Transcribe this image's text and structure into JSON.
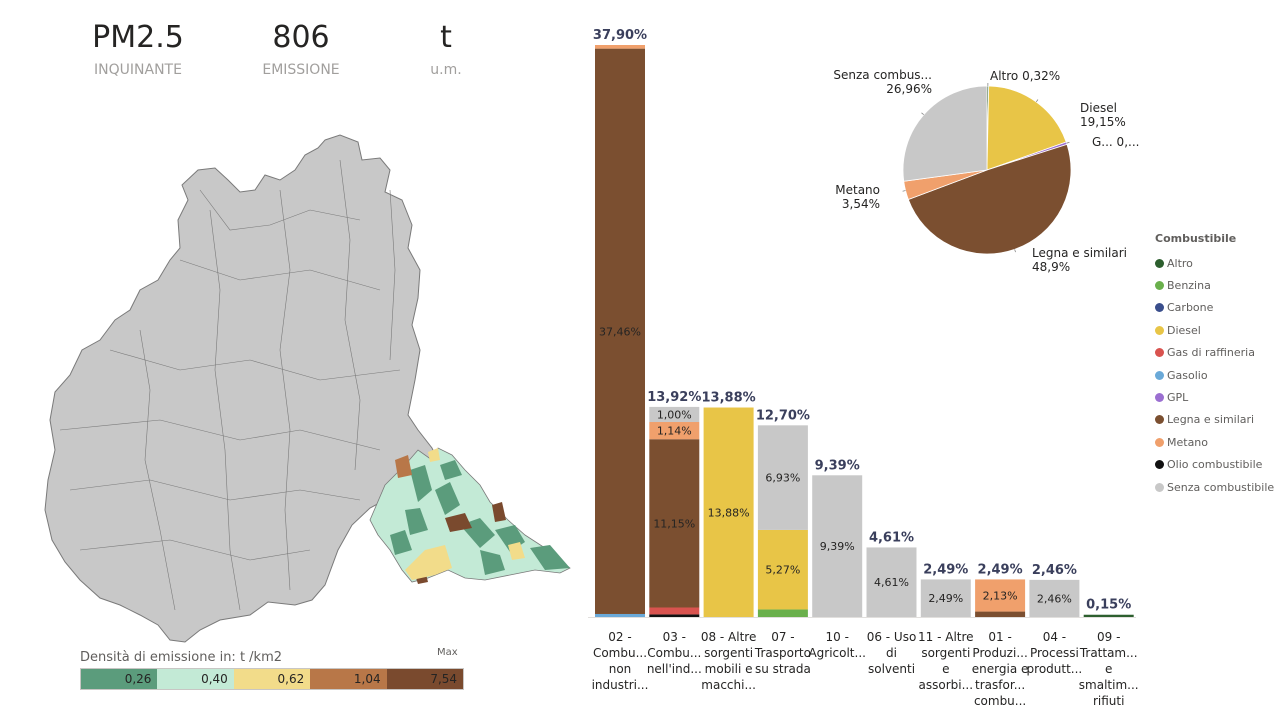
{
  "kpis": [
    {
      "value": "PM2.5",
      "label": "INQUINANTE"
    },
    {
      "value": "806",
      "label": "EMISSIONE"
    },
    {
      "value": "t",
      "label": "u.m."
    }
  ],
  "map_legend": {
    "title": "Densità di emissione in:  t /km2",
    "max_label": "Max",
    "classes": [
      {
        "label": "0,26",
        "color": "#5b9c7c"
      },
      {
        "label": "0,40",
        "color": "#c3ead6"
      },
      {
        "label": "0,62",
        "color": "#f2dc8a"
      },
      {
        "label": "1,04",
        "color": "#b87748"
      },
      {
        "label": "7,54",
        "color": "#7a4a2e"
      }
    ]
  },
  "fuel_legend": {
    "title": "Combustibile",
    "items": [
      {
        "name": "Altro",
        "color": "#2d5f2e"
      },
      {
        "name": "Benzina",
        "color": "#6ab04c"
      },
      {
        "name": "Carbone",
        "color": "#3a4e8c"
      },
      {
        "name": "Diesel",
        "color": "#e8c547"
      },
      {
        "name": "Gas di raffineria",
        "color": "#d9534f"
      },
      {
        "name": "Gasolio",
        "color": "#6aa9d8"
      },
      {
        "name": "GPL",
        "color": "#9b6fd1"
      },
      {
        "name": "Legna e similari",
        "color": "#7b4f30"
      },
      {
        "name": "Metano",
        "color": "#f0a06c"
      },
      {
        "name": "Olio combustibile",
        "color": "#111111"
      },
      {
        "name": "Senza combustibile",
        "color": "#c8c8c8"
      }
    ]
  },
  "chart_data": [
    {
      "type": "bar",
      "stacked": true,
      "categories": [
        [
          "02 -",
          "Combu...",
          "non",
          "industri..."
        ],
        [
          "03 -",
          "Combu...",
          "nell'ind..."
        ],
        [
          "08 - Altre",
          "sorgenti",
          "mobili e",
          "macchi..."
        ],
        [
          "07 -",
          "Trasporto",
          "su strada"
        ],
        [
          "10 -",
          "Agricolt..."
        ],
        [
          "06 - Uso",
          "di",
          "solventi"
        ],
        [
          "11 - Altre",
          "sorgenti",
          "e",
          "assorbi..."
        ],
        [
          "01 -",
          "Produzi...",
          "energia e",
          "trasfor...",
          "combu..."
        ],
        [
          "04 -",
          "Processi",
          "produtt..."
        ],
        [
          "09 -",
          "Trattam...",
          "e",
          "smaltim...",
          "rifiuti"
        ]
      ],
      "totals": [
        "37,90%",
        "13,92%",
        "13,88%",
        "12,70%",
        "9,39%",
        "4,61%",
        "2,49%",
        "2,49%",
        "2,46%",
        "0,15%"
      ],
      "total_values": [
        37.9,
        13.92,
        13.88,
        12.7,
        9.39,
        4.61,
        2.49,
        2.49,
        2.46,
        0.15
      ],
      "ylim": [
        0,
        37.9
      ],
      "stacks": [
        [
          {
            "fuel": "Gasolio",
            "value": 0.2,
            "label": ""
          },
          {
            "fuel": "Legna e similari",
            "value": 37.46,
            "label": "37,46%"
          },
          {
            "fuel": "Metano",
            "value": 0.24,
            "label": ""
          }
        ],
        [
          {
            "fuel": "Olio combustibile",
            "value": 0.17,
            "label": ""
          },
          {
            "fuel": "Gas di raffineria",
            "value": 0.46,
            "label": ""
          },
          {
            "fuel": "Legna e similari",
            "value": 11.15,
            "label": "11,15%"
          },
          {
            "fuel": "Metano",
            "value": 1.14,
            "label": "1,14%"
          },
          {
            "fuel": "Senza combustibile",
            "value": 1.0,
            "label": "1,00%"
          }
        ],
        [
          {
            "fuel": "Diesel",
            "value": 13.88,
            "label": "13,88%"
          }
        ],
        [
          {
            "fuel": "Benzina",
            "value": 0.5,
            "label": ""
          },
          {
            "fuel": "Diesel",
            "value": 5.27,
            "label": "5,27%"
          },
          {
            "fuel": "Senza combustibile",
            "value": 6.93,
            "label": "6,93%"
          }
        ],
        [
          {
            "fuel": "Senza combustibile",
            "value": 9.39,
            "label": "9,39%"
          }
        ],
        [
          {
            "fuel": "Senza combustibile",
            "value": 4.61,
            "label": "4,61%"
          }
        ],
        [
          {
            "fuel": "Senza combustibile",
            "value": 2.49,
            "label": "2,49%"
          }
        ],
        [
          {
            "fuel": "Legna e similari",
            "value": 0.36,
            "label": ""
          },
          {
            "fuel": "Metano",
            "value": 2.13,
            "label": "2,13%"
          }
        ],
        [
          {
            "fuel": "Senza combustibile",
            "value": 2.46,
            "label": "2,46%"
          }
        ],
        [
          {
            "fuel": "Altro",
            "value": 0.15,
            "label": ""
          }
        ]
      ]
    },
    {
      "type": "pie",
      "slices": [
        {
          "name": "Altro",
          "value": 0.32,
          "label": "Altro 0,32%",
          "color": "#2d5f2e"
        },
        {
          "name": "Diesel",
          "value": 19.15,
          "label": "Diesel 19,15%",
          "color": "#e8c547"
        },
        {
          "name": "GPL",
          "value": 0.45,
          "label": "G... 0,...",
          "color": "#9b6fd1"
        },
        {
          "name": "Legna e similari",
          "value": 48.9,
          "label": "Legna e similari 48,9%",
          "color": "#7b4f30"
        },
        {
          "name": "Metano",
          "value": 3.54,
          "label": "Metano 3,54%",
          "color": "#f0a06c"
        },
        {
          "name": "Senza combustibile",
          "value": 26.96,
          "label": "Senza combus... 26,96%",
          "color": "#c8c8c8"
        }
      ]
    }
  ]
}
